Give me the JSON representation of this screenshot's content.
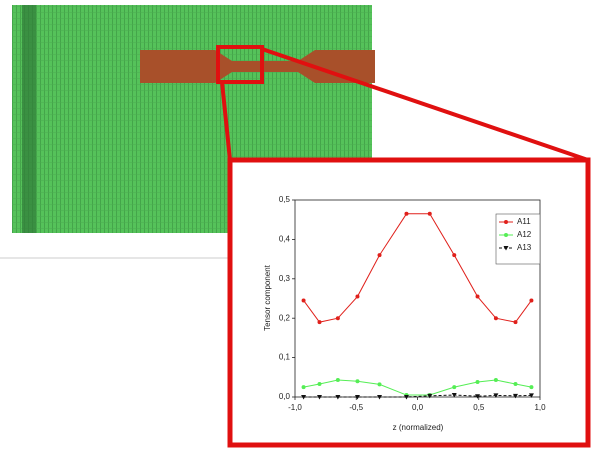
{
  "chart_data": {
    "type": "line",
    "x_label": "z (normalized)",
    "y_label": "Tensor component",
    "x": [
      -0.93,
      -0.8,
      -0.65,
      -0.49,
      -0.31,
      -0.09,
      0.1,
      0.3,
      0.49,
      0.64,
      0.8,
      0.93
    ],
    "series": [
      {
        "name": "A11",
        "color": "#e0201b",
        "marker": "circle",
        "dash": "solid",
        "values": [
          0.245,
          0.19,
          0.2,
          0.255,
          0.36,
          0.465,
          0.465,
          0.36,
          0.255,
          0.2,
          0.19,
          0.245
        ]
      },
      {
        "name": "A12",
        "color": "#55ee55",
        "marker": "circle",
        "dash": "solid",
        "values": [
          0.025,
          0.033,
          0.043,
          0.04,
          0.032,
          0.005,
          0.005,
          0.025,
          0.038,
          0.043,
          0.033,
          0.025
        ]
      },
      {
        "name": "A13",
        "color": "#111111",
        "marker": "triangle",
        "dash": "dashed",
        "values": [
          0,
          0,
          0,
          0,
          0,
          0,
          0.003,
          0.005,
          0.002,
          0.004,
          0.003,
          0.004
        ]
      }
    ],
    "xlim": [
      -1,
      1
    ],
    "ylim": [
      0,
      0.5
    ],
    "xticks": [
      {
        "value": -1,
        "label": "-1,0"
      },
      {
        "value": -0.5,
        "label": "-0,5"
      },
      {
        "value": 0,
        "label": "0,0"
      },
      {
        "value": 0.5,
        "label": "0,5"
      },
      {
        "value": 1,
        "label": "1,0"
      }
    ],
    "yticks": [
      {
        "value": 0,
        "label": "0,0"
      },
      {
        "value": 0.1,
        "label": "0,1"
      },
      {
        "value": 0.2,
        "label": "0,2"
      },
      {
        "value": 0.3,
        "label": "0,3"
      },
      {
        "value": 0.4,
        "label": "0,4"
      },
      {
        "value": 0.5,
        "label": "0,5"
      }
    ],
    "legend": "upper right",
    "grid": false
  }
}
